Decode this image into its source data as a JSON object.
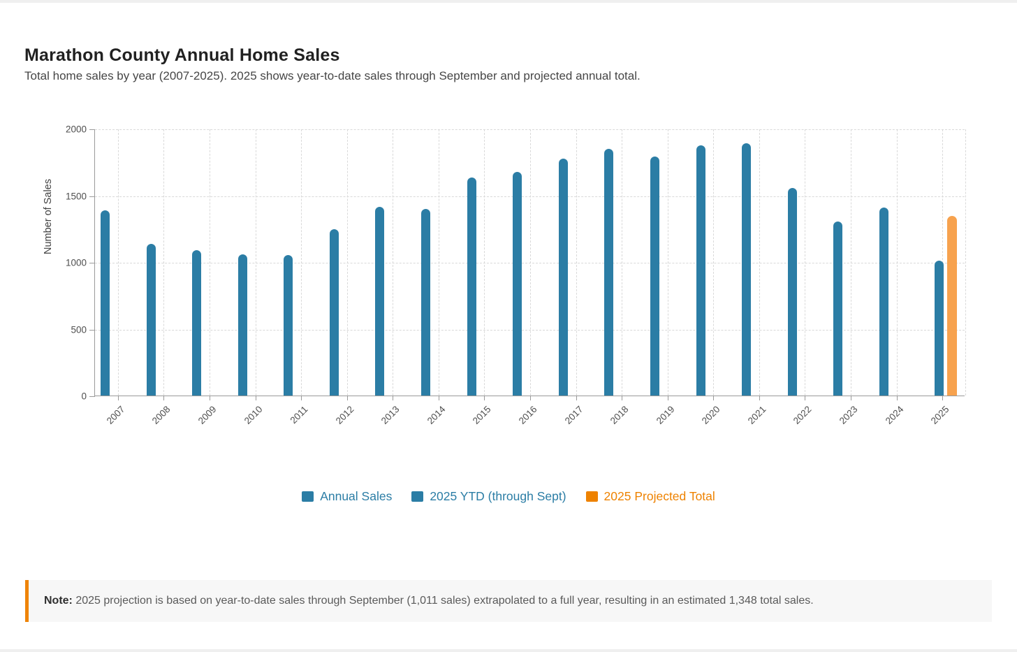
{
  "page": {
    "title": "Marathon County Annual Home Sales",
    "subtitle": "Total home sales by year (2007-2025). 2025 shows year-to-date sales through September and projected annual total."
  },
  "chart_data": {
    "type": "bar",
    "title": "Marathon County Annual Home Sales",
    "xlabel": "",
    "ylabel": "Number of Sales",
    "ylim": [
      0,
      2000
    ],
    "yticks": [
      0,
      500,
      1000,
      1500,
      2000
    ],
    "grid": true,
    "legend_position": "bottom-center",
    "categories": [
      "2007",
      "2008",
      "2009",
      "2010",
      "2011",
      "2012",
      "2013",
      "2014",
      "2015",
      "2016",
      "2017",
      "2018",
      "2019",
      "2020",
      "2021",
      "2022",
      "2023",
      "2024",
      "2025"
    ],
    "series": [
      {
        "name": "Annual Sales",
        "color": "#2b7da5",
        "years": [
          "2007",
          "2008",
          "2009",
          "2010",
          "2011",
          "2012",
          "2013",
          "2014",
          "2015",
          "2016",
          "2017",
          "2018",
          "2019",
          "2020",
          "2021",
          "2022",
          "2023",
          "2024"
        ],
        "values": [
          1390,
          1135,
          1090,
          1060,
          1050,
          1245,
          1415,
          1400,
          1635,
          1675,
          1775,
          1850,
          1790,
          1875,
          1890,
          1555,
          1305,
          1410
        ]
      },
      {
        "name": "2025 YTD (through Sept)",
        "color": "#2b7da5",
        "years": [
          "2025"
        ],
        "values": [
          1011
        ]
      },
      {
        "name": "2025 Projected Total",
        "color": "#f7a24e",
        "years": [
          "2025"
        ],
        "values": [
          1348
        ]
      }
    ]
  },
  "legend": {
    "items": [
      {
        "label": "Annual Sales",
        "color": "#2b7da5"
      },
      {
        "label": "2025 YTD (through Sept)",
        "color": "#2b7da5"
      },
      {
        "label": "2025 Projected Total",
        "color": "#ee8200"
      }
    ]
  },
  "note": {
    "label": "Note:",
    "text": "2025 projection is based on year-to-date sales through September (1,011 sales) extrapolated to a full year, resulting in an estimated 1,348 total sales."
  },
  "colors": {
    "bar_blue": "#2b7da5",
    "bar_orange": "#f7a24e",
    "legend_orange": "#ee8200",
    "note_border": "#ee8408",
    "grid": "#d9d9d9",
    "axis": "#9a9a9a"
  }
}
